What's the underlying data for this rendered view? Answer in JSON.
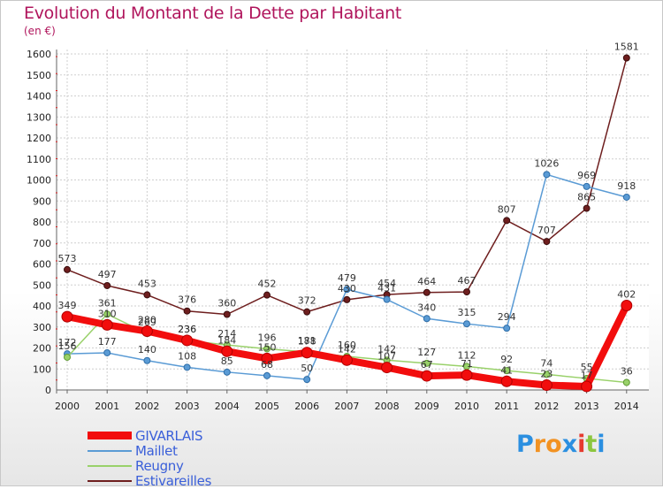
{
  "chart_data": {
    "type": "line",
    "title": "Evolution du Montant de la Dette par Habitant",
    "unit": "(en €)",
    "x": [
      2000,
      2001,
      2002,
      2003,
      2004,
      2005,
      2006,
      2007,
      2008,
      2009,
      2010,
      2011,
      2012,
      2013,
      2014
    ],
    "ylim": [
      0,
      1600
    ],
    "yticks": [
      0,
      100,
      200,
      300,
      400,
      500,
      600,
      700,
      800,
      900,
      1000,
      1100,
      1200,
      1300,
      1400,
      1500,
      1600
    ],
    "grid": true,
    "legend_position": "bottom-left",
    "series": [
      {
        "name": "Estivareilles",
        "color": "#6e1e1e",
        "values": [
          573,
          497,
          453,
          376,
          360,
          452,
          372,
          430,
          454,
          464,
          467,
          807,
          707,
          865,
          1581
        ]
      },
      {
        "name": "Maillet",
        "color": "#5a9bd5",
        "values": [
          172,
          177,
          140,
          108,
          85,
          68,
          50,
          479,
          431,
          340,
          315,
          294,
          1026,
          969,
          918
        ]
      },
      {
        "name": "Reugny",
        "color": "#99d16a",
        "values": [
          156,
          361,
          269,
          236,
          214,
          196,
          181,
          160,
          142,
          127,
          112,
          92,
          74,
          55,
          36
        ]
      },
      {
        "name": "GIVARLAIS",
        "color": "#f20d0d",
        "values": [
          349,
          310,
          280,
          236,
          184,
          150,
          178,
          142,
          107,
          67,
          71,
          41,
          23,
          17,
          402
        ]
      }
    ]
  },
  "legend": [
    {
      "label": "GIVARLAIS",
      "color": "#f20d0d"
    },
    {
      "label": "Maillet",
      "color": "#5a9bd5"
    },
    {
      "label": "Reugny",
      "color": "#99d16a"
    },
    {
      "label": "Estivareilles",
      "color": "#6e1e1e"
    }
  ],
  "logo": {
    "letters": [
      "P",
      "r",
      "o",
      "x",
      "i",
      "t",
      "i"
    ]
  }
}
